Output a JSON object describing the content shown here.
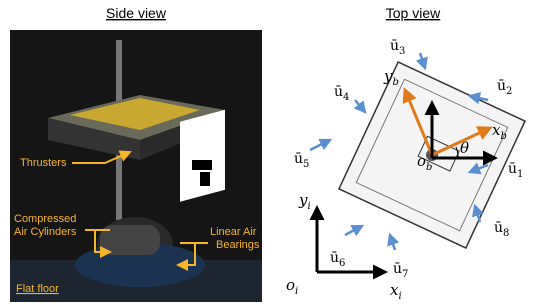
{
  "side_view": {
    "title": "Side view",
    "thrusters": "Thrusters",
    "cylinders": [
      "Compressed",
      "Air Cylinders"
    ],
    "bearings": [
      "Linear Air",
      "Bearings"
    ],
    "floor": "Flat floor"
  },
  "top_view": {
    "title": "Top view",
    "inputs": [
      {
        "symbol": "ū",
        "index": "1"
      },
      {
        "symbol": "ū",
        "index": "2"
      },
      {
        "symbol": "ū",
        "index": "3"
      },
      {
        "symbol": "ū",
        "index": "4"
      },
      {
        "symbol": "ū",
        "index": "5"
      },
      {
        "symbol": "ū",
        "index": "6"
      },
      {
        "symbol": "ū",
        "index": "7"
      },
      {
        "symbol": "ū",
        "index": "8"
      }
    ],
    "body_frame": {
      "x": "x",
      "y": "y",
      "origin": "o",
      "subscript": "b",
      "angle": "θ"
    },
    "inertial_frame": {
      "x": "x",
      "y": "y",
      "origin": "o",
      "subscript": "i"
    }
  }
}
